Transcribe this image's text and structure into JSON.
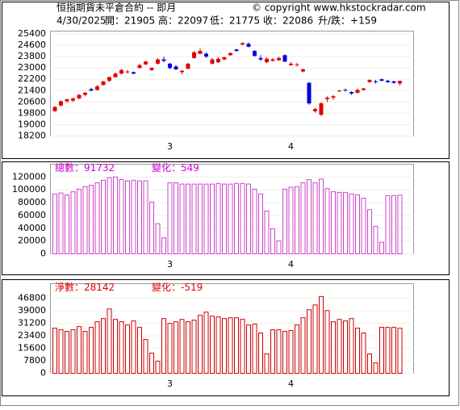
{
  "chart_data": [
    {
      "type": "candlestick",
      "title": "恒指期貨未平倉合約 -- 即月",
      "copyright": "© copyright www.hkstockradar.com",
      "date": "4/30/2025",
      "stats": [
        "開：21905",
        "高：22097",
        "低：21775",
        "收：22086",
        "升/跌：+159"
      ],
      "categories": [
        null,
        null,
        null,
        null,
        null,
        null,
        null,
        null,
        null,
        null,
        null,
        null,
        null,
        null,
        null,
        null,
        null,
        null,
        null,
        "3",
        null,
        null,
        null,
        null,
        null,
        null,
        null,
        null,
        null,
        null,
        null,
        null,
        null,
        null,
        null,
        null,
        null,
        null,
        null,
        "4",
        null,
        null,
        null,
        null,
        null,
        null,
        null,
        null,
        null,
        null,
        null,
        null,
        null,
        null,
        null,
        null,
        null,
        null
      ],
      "open": [
        19950,
        20350,
        20650,
        20700,
        20850,
        21100,
        21500,
        21450,
        21800,
        22100,
        22350,
        22600,
        22700,
        22700,
        23000,
        23250,
        22850,
        23300,
        23600,
        23300,
        23100,
        22700,
        22950,
        23700,
        24000,
        24000,
        23300,
        23400,
        23600,
        23900,
        24300,
        24650,
        24700,
        24200,
        23700,
        23400,
        23500,
        23550,
        23900,
        23200,
        23200,
        22750,
        21950,
        19950,
        19700,
        20800,
        20900,
        21350,
        21450,
        21300,
        21250,
        21450,
        22000,
        22050,
        22200,
        22100,
        22050,
        21905
      ],
      "high": [
        20300,
        20700,
        20850,
        20900,
        21150,
        21300,
        21600,
        21800,
        22100,
        22400,
        22700,
        22950,
        22850,
        22750,
        23300,
        23500,
        23050,
        23700,
        23800,
        23350,
        23200,
        22850,
        23350,
        24200,
        24400,
        24100,
        23700,
        23750,
        23800,
        24100,
        24350,
        24800,
        24800,
        24250,
        23900,
        23750,
        23700,
        23800,
        23950,
        23400,
        23350,
        22950,
        22000,
        20200,
        20600,
        21000,
        21100,
        21450,
        21550,
        21350,
        21550,
        21600,
        22200,
        22150,
        22250,
        22150,
        22100,
        22097
      ],
      "low": [
        19900,
        20300,
        20550,
        20600,
        20800,
        21000,
        21350,
        21400,
        21750,
        22000,
        22300,
        22550,
        22600,
        22550,
        22950,
        23200,
        22800,
        23250,
        23400,
        22900,
        22850,
        22550,
        22900,
        23650,
        23950,
        23700,
        23250,
        23350,
        23550,
        23850,
        24150,
        24600,
        24450,
        23800,
        23500,
        23350,
        23450,
        23500,
        23400,
        23150,
        23100,
        22700,
        20400,
        19850,
        19600,
        20600,
        20750,
        21300,
        21350,
        21100,
        21200,
        21400,
        21950,
        21900,
        22050,
        21950,
        21900,
        21775
      ],
      "close": [
        20250,
        20650,
        20780,
        20850,
        21100,
        21250,
        21400,
        21700,
        22050,
        22350,
        22600,
        22850,
        22750,
        22600,
        23200,
        23450,
        23000,
        23600,
        23500,
        23000,
        22900,
        22800,
        23300,
        24100,
        24200,
        23800,
        23600,
        23650,
        23750,
        24050,
        24200,
        24750,
        24500,
        23850,
        23600,
        23650,
        23600,
        23700,
        23450,
        23300,
        23250,
        22900,
        20500,
        20100,
        20500,
        20900,
        21000,
        21400,
        21400,
        21200,
        21450,
        21550,
        22150,
        22000,
        22100,
        22000,
        21950,
        22086
      ],
      "up_color": "#e00000",
      "down_color": "#0000e0",
      "ylim": [
        18200,
        25600
      ],
      "yticks": [
        18200,
        19000,
        19800,
        20600,
        21400,
        22200,
        23000,
        23800,
        24600,
        25400
      ],
      "grid": true
    },
    {
      "type": "bar",
      "labels": [
        "總數：91732",
        "變化：549"
      ],
      "label_color": "#cc00cc",
      "categories": [
        null,
        null,
        null,
        null,
        null,
        null,
        null,
        null,
        null,
        null,
        null,
        null,
        null,
        null,
        null,
        null,
        null,
        null,
        null,
        "3",
        null,
        null,
        null,
        null,
        null,
        null,
        null,
        null,
        null,
        null,
        null,
        null,
        null,
        null,
        null,
        null,
        null,
        null,
        null,
        "4",
        null,
        null,
        null,
        null,
        null,
        null,
        null,
        null,
        null,
        null,
        null,
        null,
        null,
        null,
        null,
        null,
        null,
        null
      ],
      "values": [
        93500,
        95000,
        92000,
        97000,
        101000,
        105000,
        107000,
        111000,
        115000,
        119000,
        120000,
        116000,
        114000,
        115000,
        114000,
        114000,
        81000,
        47000,
        25000,
        111000,
        111000,
        109000,
        109000,
        109000,
        109000,
        109000,
        109000,
        110000,
        109000,
        109000,
        110000,
        110000,
        109000,
        101000,
        93500,
        67000,
        39000,
        20000,
        101000,
        104000,
        105000,
        111000,
        116000,
        111000,
        117000,
        102000,
        97000,
        96000,
        96000,
        93500,
        92000,
        87000,
        69000,
        43000,
        18000,
        91000,
        91000,
        91732
      ],
      "color": "#cc44cc",
      "ylim": [
        0,
        140000
      ],
      "yticks": [
        0,
        20000,
        40000,
        60000,
        80000,
        100000,
        120000
      ],
      "grid": true
    },
    {
      "type": "bar",
      "labels": [
        "淨數：28142",
        "變化：-519"
      ],
      "label_color": "#dd0000",
      "categories": [
        null,
        null,
        null,
        null,
        null,
        null,
        null,
        null,
        null,
        null,
        null,
        null,
        null,
        null,
        null,
        null,
        null,
        null,
        null,
        "3",
        null,
        null,
        null,
        null,
        null,
        null,
        null,
        null,
        null,
        null,
        null,
        null,
        null,
        null,
        null,
        null,
        null,
        null,
        null,
        "4",
        null,
        null,
        null,
        null,
        null,
        null,
        null,
        null,
        null,
        null,
        null,
        null,
        null,
        null,
        null,
        null,
        null,
        null
      ],
      "values": [
        28200,
        27200,
        26200,
        27200,
        29200,
        26200,
        28700,
        32200,
        34200,
        40200,
        33700,
        32200,
        30200,
        32700,
        28700,
        21100,
        12600,
        7500,
        34200,
        31200,
        32200,
        33700,
        32200,
        33200,
        36200,
        38200,
        35700,
        35200,
        34200,
        34700,
        34700,
        33700,
        30200,
        30700,
        25200,
        12100,
        27200,
        27200,
        26200,
        26700,
        30200,
        34700,
        39700,
        42700,
        48000,
        39200,
        32200,
        33700,
        32700,
        34200,
        28200,
        25200,
        12100,
        6500,
        28700,
        28700,
        28700,
        28142
      ],
      "color": "#cc0000",
      "ylim": [
        0,
        56000
      ],
      "yticks": [
        0,
        7800,
        15600,
        23400,
        31200,
        39000,
        46800
      ],
      "grid": true
    }
  ]
}
